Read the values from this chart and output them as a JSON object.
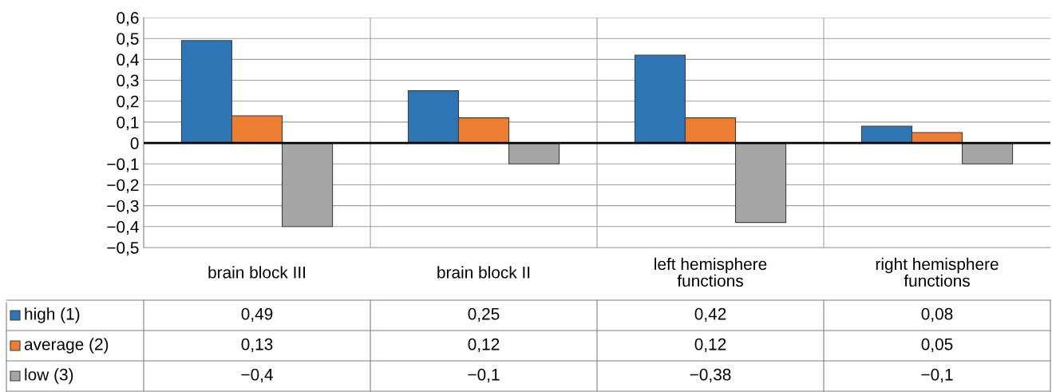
{
  "chart_data": {
    "type": "bar",
    "categories": [
      "brain block III",
      "brain block II",
      "left hemisphere\nfunctions",
      "right hemisphere\nfunctions"
    ],
    "series": [
      {
        "name": "high (1)",
        "color": "#2e75b6",
        "values": [
          0.49,
          0.25,
          0.42,
          0.08
        ],
        "value_labels": [
          "0,49",
          "0,25",
          "0,42",
          "0,08"
        ]
      },
      {
        "name": "average (2)",
        "color": "#ed7d31",
        "values": [
          0.13,
          0.12,
          0.12,
          0.05
        ],
        "value_labels": [
          "0,13",
          "0,12",
          "0,12",
          "0,05"
        ]
      },
      {
        "name": "low (3)",
        "color": "#a5a5a5",
        "values": [
          -0.4,
          -0.1,
          -0.38,
          -0.1
        ],
        "value_labels": [
          "−0,4",
          "−0,1",
          "−0,38",
          "−0,1"
        ]
      }
    ],
    "ylim": [
      -0.5,
      0.6
    ],
    "yticks": [
      {
        "value": 0.6,
        "label": "0,6"
      },
      {
        "value": 0.5,
        "label": "0,5"
      },
      {
        "value": 0.4,
        "label": "0,4"
      },
      {
        "value": 0.3,
        "label": "0,3"
      },
      {
        "value": 0.2,
        "label": "0,2"
      },
      {
        "value": 0.1,
        "label": "0,1"
      },
      0,
      {
        "value": -0.1,
        "label": "−0,1"
      },
      {
        "value": -0.2,
        "label": "−0,2"
      },
      {
        "value": -0.3,
        "label": "−0,3"
      },
      {
        "value": -0.4,
        "label": "−0,4"
      },
      {
        "value": -0.5,
        "label": "−0,5"
      }
    ],
    "grid": "y",
    "legend": "bottom"
  }
}
